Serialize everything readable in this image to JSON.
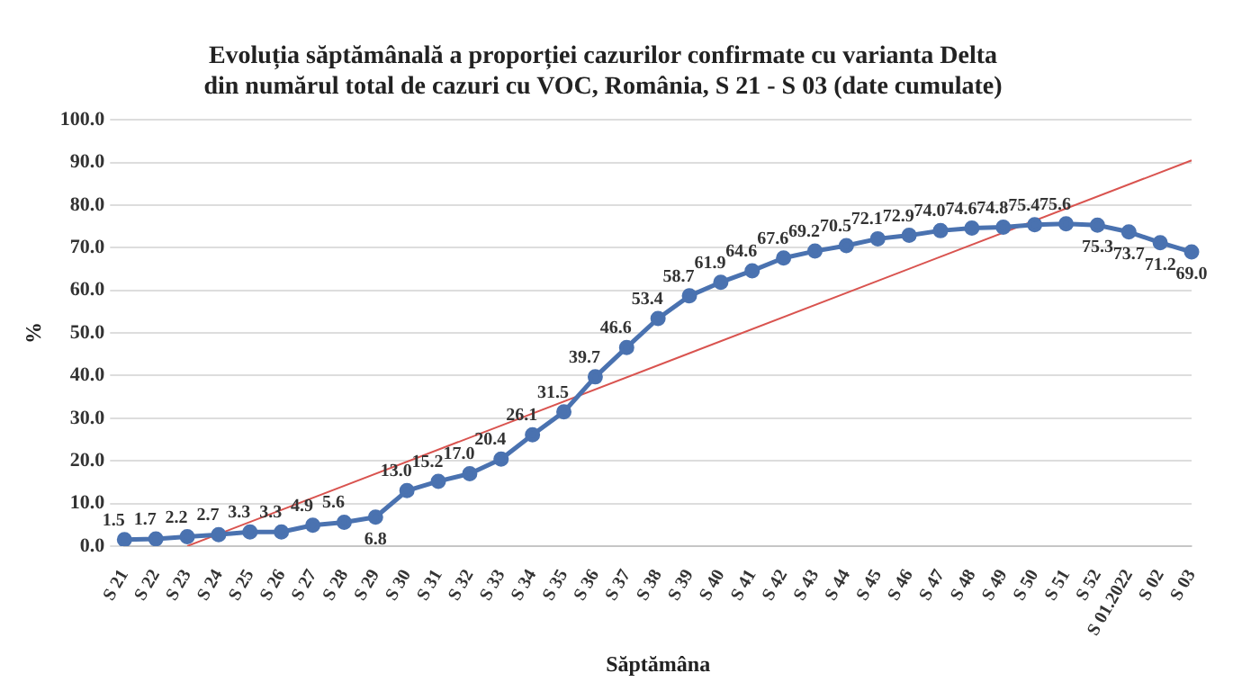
{
  "chart_data": {
    "type": "line",
    "title": [
      "Evoluția săptămânală a proporției cazurilor confirmate cu varianta Delta",
      "din numărul total de cazuri cu VOC, România, S 21 - S 03 (date cumulate)"
    ],
    "categories": [
      "S 21",
      "S 22",
      "S 23",
      "S 24",
      "S 25",
      "S 26",
      "S 27",
      "S 28",
      "S 29",
      "S 30",
      "S 31",
      "S 32",
      "S 33",
      "S 34",
      "S 35",
      "S 36",
      "S 37",
      "S 38",
      "S 39",
      "S 40",
      "S 41",
      "S 42",
      "S 43",
      "S 44",
      "S 45",
      "S 46",
      "S 47",
      "S 48",
      "S 49",
      "S 50",
      "S 51",
      "S 52",
      "S 01.2022",
      "S 02",
      "S 03"
    ],
    "xlabel": "Săptămâna",
    "ylabel": "%",
    "ylim": [
      0,
      100
    ],
    "yticks": [
      {
        "value": 0,
        "label": "0.0"
      },
      {
        "value": 10,
        "label": "10.0"
      },
      {
        "value": 20,
        "label": "20.0"
      },
      {
        "value": 30,
        "label": "30.0"
      },
      {
        "value": 40,
        "label": "40.0"
      },
      {
        "value": 50,
        "label": "50.0"
      },
      {
        "value": 60,
        "label": "60.0"
      },
      {
        "value": 70,
        "label": "70.0"
      },
      {
        "value": 80,
        "label": "80.0"
      },
      {
        "value": 90,
        "label": "90.0"
      },
      {
        "value": 100,
        "label": "100.0"
      }
    ],
    "grid": "y",
    "marker": "circle",
    "line_style": "solid",
    "series": [
      {
        "color": "#4a72b0",
        "values": [
          1.5,
          1.7,
          2.2,
          2.7,
          3.3,
          3.3,
          4.9,
          5.6,
          6.8,
          13.0,
          15.2,
          17.0,
          20.4,
          26.1,
          31.5,
          39.7,
          46.6,
          53.4,
          58.7,
          61.9,
          64.6,
          67.6,
          69.2,
          70.5,
          72.1,
          72.9,
          74.0,
          74.6,
          74.8,
          75.4,
          75.6,
          75.3,
          73.7,
          71.2,
          69.0
        ],
        "value_labels": [
          "1.5",
          "1.7",
          "2.2",
          "2.7",
          "3.3",
          "3.3",
          "4.9",
          "5.6",
          "6.8",
          "13.0",
          "15.2",
          "17.0",
          "20.4",
          "26.1",
          "31.5",
          "39.7",
          "46.6",
          "53.4",
          "58.7",
          "61.9",
          "64.6",
          "67.6",
          "69.2",
          "70.5",
          "72.1",
          "72.9",
          "74.0",
          "74.6",
          "74.8",
          "75.4",
          "75.6",
          "75.3",
          "73.7",
          "71.2",
          "69.0"
        ]
      },
      {
        "type": "line",
        "marker": "none",
        "color": "#d9534f",
        "x": [
          "S 23",
          "S 03"
        ],
        "values": [
          0,
          90.5
        ]
      }
    ]
  }
}
